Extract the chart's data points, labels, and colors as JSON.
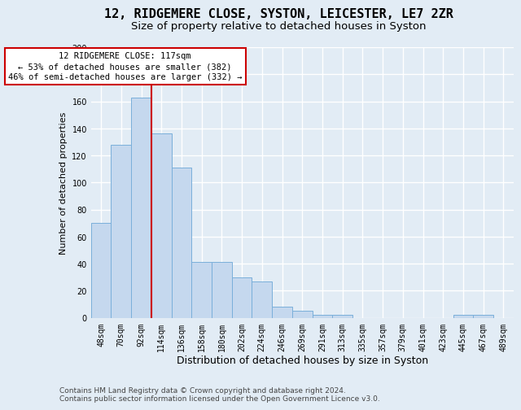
{
  "title1": "12, RIDGEMERE CLOSE, SYSTON, LEICESTER, LE7 2ZR",
  "title2": "Size of property relative to detached houses in Syston",
  "xlabel": "Distribution of detached houses by size in Syston",
  "ylabel": "Number of detached properties",
  "categories": [
    "48sqm",
    "70sqm",
    "92sqm",
    "114sqm",
    "136sqm",
    "158sqm",
    "180sqm",
    "202sqm",
    "224sqm",
    "246sqm",
    "269sqm",
    "291sqm",
    "313sqm",
    "335sqm",
    "357sqm",
    "379sqm",
    "401sqm",
    "423sqm",
    "445sqm",
    "467sqm",
    "489sqm"
  ],
  "values": [
    70,
    128,
    163,
    136,
    111,
    41,
    41,
    30,
    27,
    8,
    5,
    2,
    2,
    0,
    0,
    0,
    0,
    0,
    2,
    2,
    0
  ],
  "bar_color": "#c5d8ee",
  "bar_edge_color": "#7aafda",
  "annotation_line1": "12 RIDGEMERE CLOSE: 117sqm",
  "annotation_line2": "← 53% of detached houses are smaller (382)",
  "annotation_line3": "46% of semi-detached houses are larger (332) →",
  "annotation_box_color": "#ffffff",
  "annotation_box_edge_color": "#cc0000",
  "vline_color": "#cc0000",
  "bg_color": "#e2ecf5",
  "plot_bg_color": "#e2ecf5",
  "footer_text": "Contains HM Land Registry data © Crown copyright and database right 2024.\nContains public sector information licensed under the Open Government Licence v3.0.",
  "ylim": [
    0,
    200
  ],
  "yticks": [
    0,
    20,
    40,
    60,
    80,
    100,
    120,
    140,
    160,
    180,
    200
  ],
  "vline_x": 2.5,
  "title1_fontsize": 11,
  "title2_fontsize": 9.5,
  "xlabel_fontsize": 9,
  "ylabel_fontsize": 8,
  "tick_fontsize": 7,
  "annotation_fontsize": 7.5,
  "footer_fontsize": 6.5
}
